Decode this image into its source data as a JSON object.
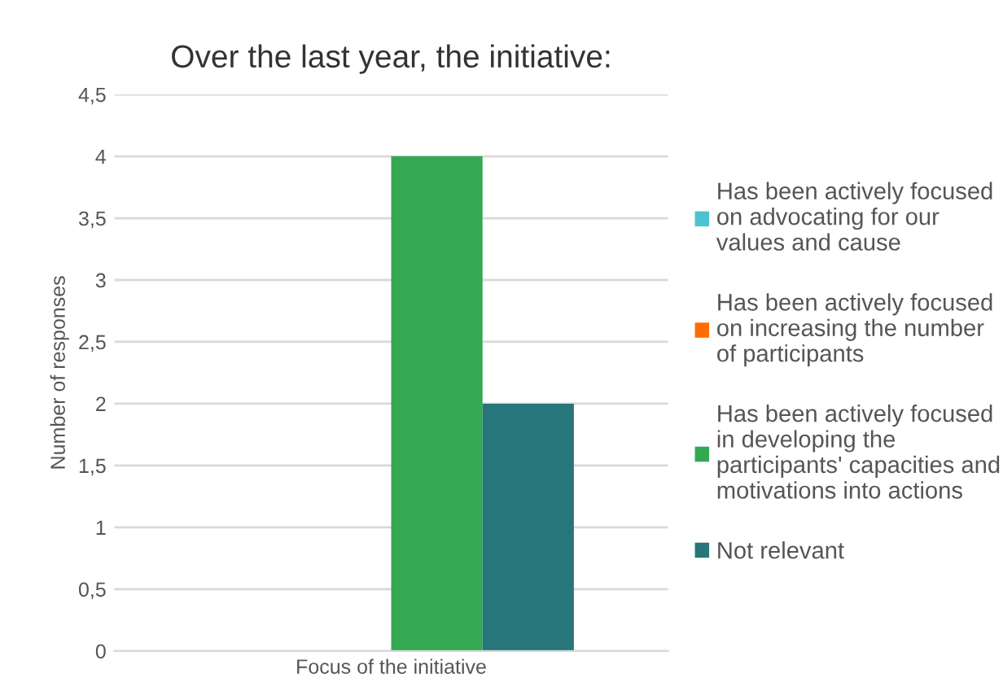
{
  "chart_data": {
    "type": "bar",
    "title": "Over the last year, the initiative:",
    "ylabel": "Number of responses",
    "categories": [
      "Focus of the initiative"
    ],
    "series": [
      {
        "name": "Has been actively focused\non advocating for our\nvalues and cause",
        "color": "#4bc3d0",
        "values": [
          0
        ]
      },
      {
        "name": "Has been actively focused\non increasing the number\nof participants",
        "color": "#ff6d01",
        "values": [
          0
        ]
      },
      {
        "name": "Has been actively focused\nin developing the\nparticipants' capacities and\nmotivations into actions",
        "color": "#34a853",
        "values": [
          4
        ]
      },
      {
        "name": "Not relevant",
        "color": "#26767b",
        "values": [
          2
        ]
      }
    ],
    "ylim": [
      0,
      4.5
    ],
    "yticks": [
      0,
      {
        "value": 0.5,
        "label": "0,5"
      },
      1,
      {
        "value": 1.5,
        "label": "1,5"
      },
      2,
      {
        "value": 2.5,
        "label": "2,5"
      },
      3,
      {
        "value": 3.5,
        "label": "3,5"
      },
      4,
      {
        "value": 4.5,
        "label": "4,5"
      }
    ],
    "grid": "y",
    "legend": "right"
  }
}
